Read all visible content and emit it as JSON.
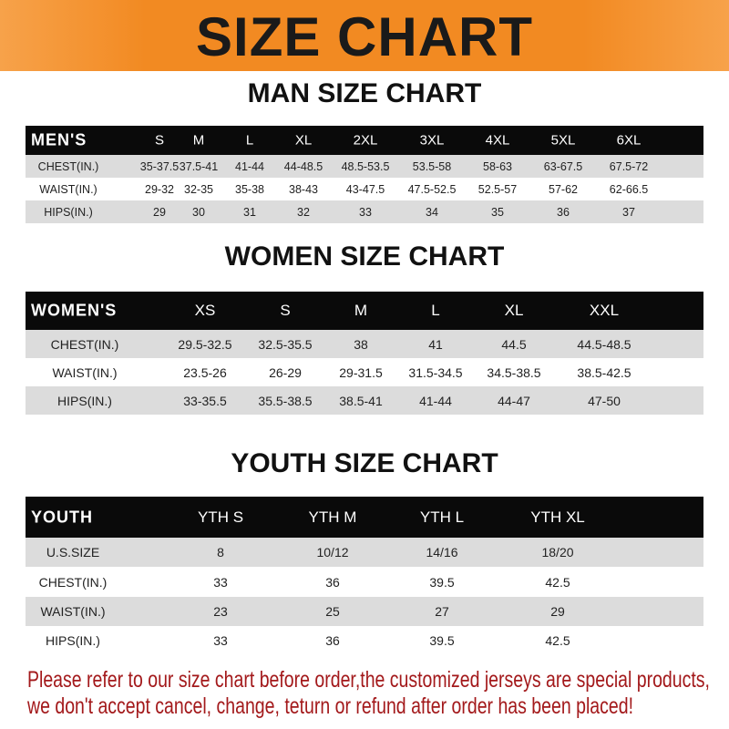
{
  "banner": {
    "title": "SIZE CHART",
    "color": "#f28a22"
  },
  "men": {
    "title": "MAN SIZE CHART",
    "header": [
      "MEN'S",
      "S",
      "M",
      "L",
      "XL",
      "2XL",
      "3XL",
      "4XL",
      "5XL",
      "6XL"
    ],
    "rows": [
      [
        "CHEST(IN.)",
        "35-37.5",
        "37.5-41",
        "41-44",
        "44-48.5",
        "48.5-53.5",
        "53.5-58",
        "58-63",
        "63-67.5",
        "67.5-72"
      ],
      [
        "WAIST(IN.)",
        "29-32",
        "32-35",
        "35-38",
        "38-43",
        "43-47.5",
        "47.5-52.5",
        "52.5-57",
        "57-62",
        "62-66.5"
      ],
      [
        "HIPS(IN.)",
        "29",
        "30",
        "31",
        "32",
        "33",
        "34",
        "35",
        "36",
        "37"
      ]
    ]
  },
  "women": {
    "title": "WOMEN SIZE CHART",
    "header": [
      "WOMEN'S",
      "XS",
      "S",
      "M",
      "L",
      "XL",
      "XXL"
    ],
    "rows": [
      [
        "CHEST(IN.)",
        "29.5-32.5",
        "32.5-35.5",
        "38",
        "41",
        "44.5",
        "44.5-48.5"
      ],
      [
        "WAIST(IN.)",
        "23.5-26",
        "26-29",
        "29-31.5",
        "31.5-34.5",
        "34.5-38.5",
        "38.5-42.5"
      ],
      [
        "HIPS(IN.)",
        "33-35.5",
        "35.5-38.5",
        "38.5-41",
        "41-44",
        "44-47",
        "47-50"
      ]
    ]
  },
  "youth": {
    "title": "YOUTH SIZE CHART",
    "header": [
      "YOUTH",
      "YTH S",
      "YTH M",
      "YTH L",
      "YTH XL"
    ],
    "rows": [
      [
        "U.S.SIZE",
        "8",
        "10/12",
        "14/16",
        "18/20"
      ],
      [
        "CHEST(IN.)",
        "33",
        "36",
        "39.5",
        "42.5"
      ],
      [
        "WAIST(IN.)",
        "23",
        "25",
        "27",
        "29"
      ],
      [
        "HIPS(IN.)",
        "33",
        "36",
        "39.5",
        "42.5"
      ]
    ]
  },
  "footer": {
    "line1": "Please refer to our size chart before order,the customized jerseys are special products,",
    "line2": "we don't accept cancel, change, teturn or refund after order has been placed!",
    "color": "#a3191b"
  }
}
